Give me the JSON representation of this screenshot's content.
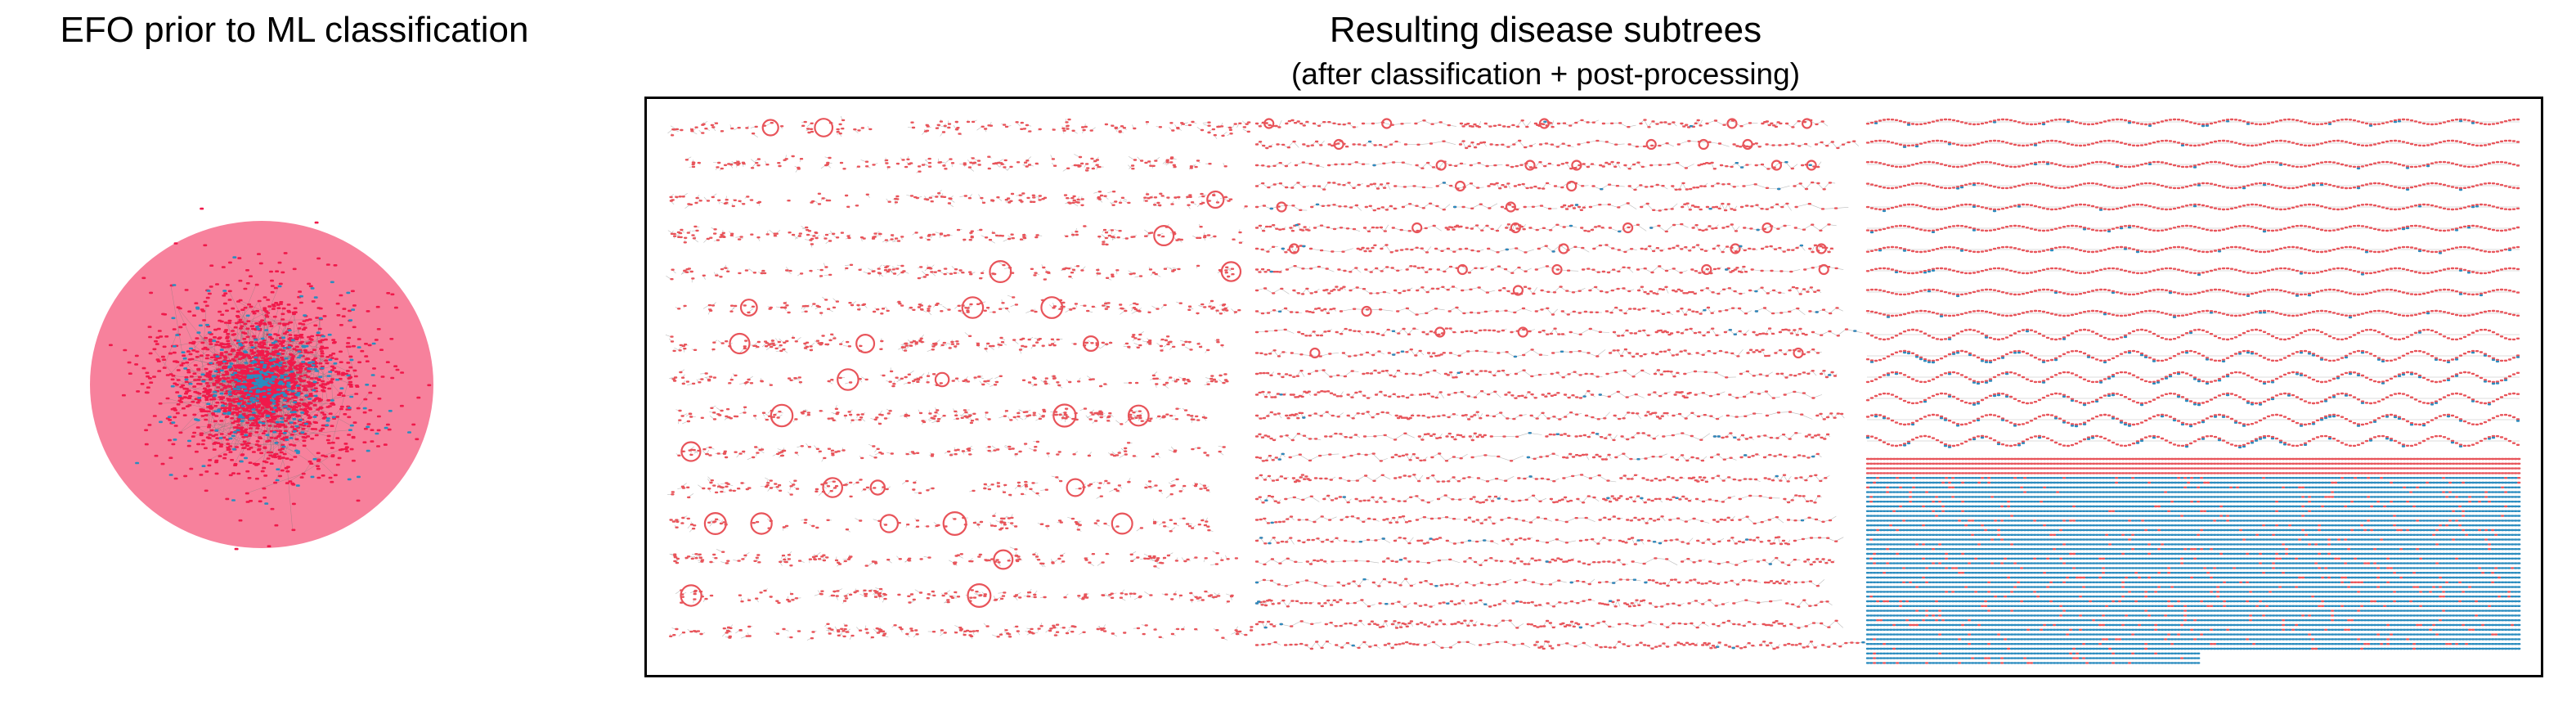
{
  "left_panel": {
    "title": "EFO prior to ML classification"
  },
  "right_panel": {
    "title": "Resulting disease subtrees",
    "subtitle": "(after classification + post-processing)"
  },
  "colors": {
    "disease_node": "#f0194a",
    "other_node": "#2b8cbf",
    "edge": "#7a7a7a",
    "subtree_node": "#e8545a",
    "frame": "#000000"
  }
}
